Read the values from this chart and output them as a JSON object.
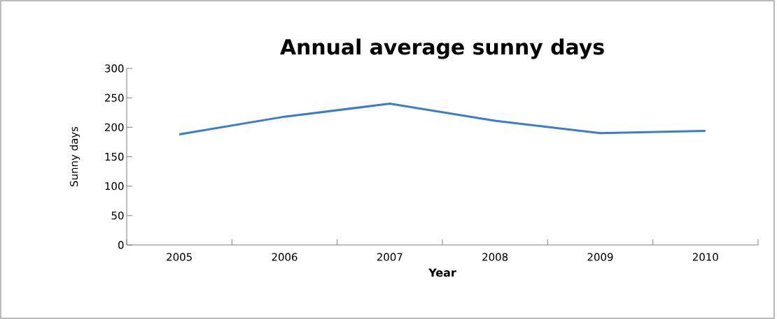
{
  "chart_data": {
    "type": "line",
    "title": "Annual average sunny days",
    "xlabel": "Year",
    "ylabel": "Sunny days",
    "categories": [
      "2005",
      "2006",
      "2007",
      "2008",
      "2009",
      "2010"
    ],
    "series": [
      {
        "color": "#3a7bd5",
        "values": [
          188,
          218,
          240,
          211,
          190,
          194
        ]
      }
    ],
    "ylim": [
      0,
      300
    ],
    "yticks": [
      0,
      50,
      100,
      150,
      200,
      250,
      300
    ],
    "grid": false
  }
}
